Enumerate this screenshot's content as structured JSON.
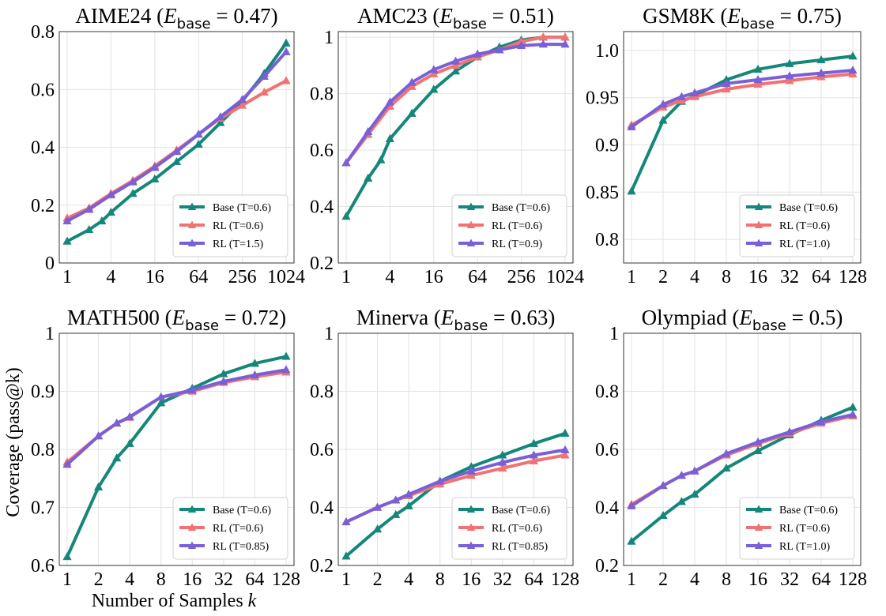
{
  "figure": {
    "ylabel": "Coverage (pass@k)",
    "xlabel_prefix": "Number of Samples ",
    "xlabel_var": "k",
    "colors": {
      "base": "#14877a",
      "rl1": "#f27272",
      "rl2": "#7b5fd6"
    }
  },
  "chart_data": [
    {
      "type": "line",
      "title_name": "AIME24",
      "title_value": "0.47",
      "xscale": "log2",
      "x_ticks": [
        1,
        4,
        16,
        64,
        256,
        1024
      ],
      "x_tick_labels": [
        "1",
        "4",
        "16",
        "64",
        "256",
        "1024"
      ],
      "ylim": [
        0,
        0.8
      ],
      "y_ticks": [
        0,
        0.2,
        0.4,
        0.6,
        0.8
      ],
      "y_tick_labels": [
        "0",
        "0.2",
        "0.4",
        "0.6",
        "0.8"
      ],
      "legend": "lower-right",
      "series": [
        {
          "name": "Base (T=0.6)",
          "color_key": "base",
          "points": [
            [
              1,
              0.075
            ],
            [
              2,
              0.115
            ],
            [
              3,
              0.145
            ],
            [
              4,
              0.175
            ],
            [
              8,
              0.24
            ],
            [
              16,
              0.29
            ],
            [
              32,
              0.35
            ],
            [
              64,
              0.41
            ],
            [
              128,
              0.485
            ],
            [
              256,
              0.56
            ],
            [
              512,
              0.655
            ],
            [
              1024,
              0.76
            ]
          ]
        },
        {
          "name": "RL (T=0.6)",
          "color_key": "rl1",
          "points": [
            [
              1,
              0.155
            ],
            [
              2,
              0.19
            ],
            [
              4,
              0.24
            ],
            [
              8,
              0.285
            ],
            [
              16,
              0.335
            ],
            [
              32,
              0.39
            ],
            [
              64,
              0.445
            ],
            [
              128,
              0.5
            ],
            [
              256,
              0.545
            ],
            [
              512,
              0.59
            ],
            [
              1024,
              0.63
            ]
          ]
        },
        {
          "name": "RL (T=1.5)",
          "color_key": "rl2",
          "points": [
            [
              1,
              0.145
            ],
            [
              2,
              0.185
            ],
            [
              4,
              0.235
            ],
            [
              8,
              0.28
            ],
            [
              16,
              0.33
            ],
            [
              32,
              0.385
            ],
            [
              64,
              0.445
            ],
            [
              128,
              0.505
            ],
            [
              256,
              0.565
            ],
            [
              512,
              0.645
            ],
            [
              1024,
              0.73
            ]
          ]
        }
      ]
    },
    {
      "type": "line",
      "title_name": "AMC23",
      "title_value": "0.51",
      "xscale": "log2",
      "x_ticks": [
        1,
        4,
        16,
        64,
        256,
        1024
      ],
      "x_tick_labels": [
        "1",
        "4",
        "16",
        "64",
        "256",
        "1024"
      ],
      "ylim": [
        0.2,
        1.02
      ],
      "y_ticks": [
        0.2,
        0.4,
        0.6,
        0.8,
        1.0
      ],
      "y_tick_labels": [
        "0.2",
        "0.4",
        "0.6",
        "0.8",
        "1"
      ],
      "legend": "lower-right",
      "series": [
        {
          "name": "Base (T=0.6)",
          "color_key": "base",
          "points": [
            [
              1,
              0.365
            ],
            [
              2,
              0.5
            ],
            [
              3,
              0.565
            ],
            [
              4,
              0.64
            ],
            [
              8,
              0.73
            ],
            [
              16,
              0.815
            ],
            [
              32,
              0.88
            ],
            [
              64,
              0.93
            ],
            [
              128,
              0.965
            ],
            [
              256,
              0.99
            ],
            [
              512,
              1.0
            ],
            [
              1024,
              1.0
            ]
          ]
        },
        {
          "name": "RL (T=0.6)",
          "color_key": "rl1",
          "points": [
            [
              1,
              0.555
            ],
            [
              2,
              0.655
            ],
            [
              4,
              0.755
            ],
            [
              8,
              0.825
            ],
            [
              16,
              0.87
            ],
            [
              32,
              0.9
            ],
            [
              64,
              0.93
            ],
            [
              128,
              0.955
            ],
            [
              256,
              0.985
            ],
            [
              512,
              1.0
            ],
            [
              1024,
              1.0
            ]
          ]
        },
        {
          "name": "RL (T=0.9)",
          "color_key": "rl2",
          "points": [
            [
              1,
              0.555
            ],
            [
              2,
              0.665
            ],
            [
              4,
              0.77
            ],
            [
              8,
              0.84
            ],
            [
              16,
              0.885
            ],
            [
              32,
              0.915
            ],
            [
              64,
              0.94
            ],
            [
              128,
              0.955
            ],
            [
              256,
              0.97
            ],
            [
              512,
              0.975
            ],
            [
              1024,
              0.975
            ]
          ]
        }
      ]
    },
    {
      "type": "line",
      "title_name": "GSM8K",
      "title_value": "0.75",
      "xscale": "log2",
      "x_ticks": [
        1,
        2,
        4,
        8,
        16,
        32,
        64,
        128
      ],
      "x_tick_labels": [
        "1",
        "2",
        "4",
        "8",
        "16",
        "32",
        "64",
        "128"
      ],
      "ylim": [
        0.775,
        1.02
      ],
      "y_ticks": [
        0.8,
        0.85,
        0.9,
        0.95,
        1.0
      ],
      "y_tick_labels": [
        "0.8",
        "0.85",
        "0.9",
        "0.95",
        "1.0"
      ],
      "legend": "lower-right",
      "series": [
        {
          "name": "Base (T=0.6)",
          "color_key": "base",
          "points": [
            [
              1,
              0.851
            ],
            [
              2,
              0.926
            ],
            [
              3,
              0.946
            ],
            [
              4,
              0.952
            ],
            [
              8,
              0.969
            ],
            [
              16,
              0.98
            ],
            [
              32,
              0.986
            ],
            [
              64,
              0.99
            ],
            [
              128,
              0.994
            ]
          ]
        },
        {
          "name": "RL (T=0.6)",
          "color_key": "rl1",
          "points": [
            [
              1,
              0.921
            ],
            [
              2,
              0.94
            ],
            [
              3,
              0.947
            ],
            [
              4,
              0.951
            ],
            [
              8,
              0.959
            ],
            [
              16,
              0.964
            ],
            [
              32,
              0.968
            ],
            [
              64,
              0.972
            ],
            [
              128,
              0.975
            ]
          ]
        },
        {
          "name": "RL (T=1.0)",
          "color_key": "rl2",
          "points": [
            [
              1,
              0.919
            ],
            [
              2,
              0.943
            ],
            [
              3,
              0.951
            ],
            [
              4,
              0.955
            ],
            [
              8,
              0.965
            ],
            [
              16,
              0.969
            ],
            [
              32,
              0.973
            ],
            [
              64,
              0.976
            ],
            [
              128,
              0.979
            ]
          ]
        }
      ]
    },
    {
      "type": "line",
      "title_name": "MATH500",
      "title_value": "0.72",
      "xscale": "log2",
      "x_ticks": [
        1,
        2,
        4,
        8,
        16,
        32,
        64,
        128
      ],
      "x_tick_labels": [
        "1",
        "2",
        "4",
        "8",
        "16",
        "32",
        "64",
        "128"
      ],
      "ylim": [
        0.6,
        1.0
      ],
      "y_ticks": [
        0.6,
        0.7,
        0.8,
        0.9,
        1.0
      ],
      "y_tick_labels": [
        "0.6",
        "0.7",
        "0.8",
        "0.9",
        "1"
      ],
      "legend": "lower-right",
      "series": [
        {
          "name": "Base (T=0.6)",
          "color_key": "base",
          "points": [
            [
              1,
              0.615
            ],
            [
              2,
              0.735
            ],
            [
              3,
              0.785
            ],
            [
              4,
              0.81
            ],
            [
              8,
              0.88
            ],
            [
              16,
              0.905
            ],
            [
              32,
              0.93
            ],
            [
              64,
              0.948
            ],
            [
              128,
              0.96
            ]
          ]
        },
        {
          "name": "RL (T=0.6)",
          "color_key": "rl1",
          "points": [
            [
              1,
              0.778
            ],
            [
              2,
              0.823
            ],
            [
              3,
              0.845
            ],
            [
              4,
              0.855
            ],
            [
              8,
              0.89
            ],
            [
              16,
              0.9
            ],
            [
              32,
              0.915
            ],
            [
              64,
              0.925
            ],
            [
              128,
              0.933
            ]
          ]
        },
        {
          "name": "RL (T=0.85)",
          "color_key": "rl2",
          "points": [
            [
              1,
              0.774
            ],
            [
              2,
              0.823
            ],
            [
              3,
              0.845
            ],
            [
              4,
              0.856
            ],
            [
              8,
              0.89
            ],
            [
              16,
              0.902
            ],
            [
              32,
              0.917
            ],
            [
              64,
              0.928
            ],
            [
              128,
              0.937
            ]
          ]
        }
      ]
    },
    {
      "type": "line",
      "title_name": "Minerva",
      "title_value": "0.63",
      "xscale": "log2",
      "x_ticks": [
        1,
        2,
        4,
        8,
        16,
        32,
        64,
        128
      ],
      "x_tick_labels": [
        "1",
        "2",
        "4",
        "8",
        "16",
        "32",
        "64",
        "128"
      ],
      "ylim": [
        0.2,
        1.0
      ],
      "y_ticks": [
        0.2,
        0.4,
        0.6,
        0.8,
        1.0
      ],
      "y_tick_labels": [
        "0.2",
        "0.4",
        "0.6",
        "0.8",
        "1"
      ],
      "legend": "lower-right",
      "series": [
        {
          "name": "Base (T=0.6)",
          "color_key": "base",
          "points": [
            [
              1,
              0.232
            ],
            [
              2,
              0.325
            ],
            [
              3,
              0.375
            ],
            [
              4,
              0.405
            ],
            [
              8,
              0.49
            ],
            [
              16,
              0.54
            ],
            [
              32,
              0.58
            ],
            [
              64,
              0.62
            ],
            [
              128,
              0.655
            ]
          ]
        },
        {
          "name": "RL (T=0.6)",
          "color_key": "rl1",
          "points": [
            [
              1,
              0.35
            ],
            [
              2,
              0.4
            ],
            [
              3,
              0.425
            ],
            [
              4,
              0.44
            ],
            [
              8,
              0.48
            ],
            [
              16,
              0.51
            ],
            [
              32,
              0.535
            ],
            [
              64,
              0.56
            ],
            [
              128,
              0.58
            ]
          ]
        },
        {
          "name": "RL (T=0.85)",
          "color_key": "rl2",
          "points": [
            [
              1,
              0.35
            ],
            [
              2,
              0.4
            ],
            [
              3,
              0.425
            ],
            [
              4,
              0.445
            ],
            [
              8,
              0.49
            ],
            [
              16,
              0.525
            ],
            [
              32,
              0.555
            ],
            [
              64,
              0.58
            ],
            [
              128,
              0.598
            ]
          ]
        }
      ]
    },
    {
      "type": "line",
      "title_name": "Olympiad",
      "title_value": "0.5",
      "xscale": "log2",
      "x_ticks": [
        1,
        2,
        4,
        8,
        16,
        32,
        64,
        128
      ],
      "x_tick_labels": [
        "1",
        "2",
        "4",
        "8",
        "16",
        "32",
        "64",
        "128"
      ],
      "ylim": [
        0.2,
        1.0
      ],
      "y_ticks": [
        0.2,
        0.4,
        0.6,
        0.8,
        1.0
      ],
      "y_tick_labels": [
        "0.2",
        "0.4",
        "0.6",
        "0.8",
        "1"
      ],
      "legend": "lower-right",
      "series": [
        {
          "name": "Base (T=0.6)",
          "color_key": "base",
          "points": [
            [
              1,
              0.283
            ],
            [
              2,
              0.372
            ],
            [
              3,
              0.42
            ],
            [
              4,
              0.445
            ],
            [
              8,
              0.535
            ],
            [
              16,
              0.595
            ],
            [
              32,
              0.65
            ],
            [
              64,
              0.7
            ],
            [
              128,
              0.745
            ]
          ]
        },
        {
          "name": "RL (T=0.6)",
          "color_key": "rl1",
          "points": [
            [
              1,
              0.41
            ],
            [
              2,
              0.475
            ],
            [
              3,
              0.51
            ],
            [
              4,
              0.525
            ],
            [
              8,
              0.58
            ],
            [
              16,
              0.62
            ],
            [
              32,
              0.655
            ],
            [
              64,
              0.69
            ],
            [
              128,
              0.715
            ]
          ]
        },
        {
          "name": "RL (T=1.0)",
          "color_key": "rl2",
          "points": [
            [
              1,
              0.405
            ],
            [
              2,
              0.475
            ],
            [
              3,
              0.51
            ],
            [
              4,
              0.525
            ],
            [
              8,
              0.585
            ],
            [
              16,
              0.625
            ],
            [
              32,
              0.66
            ],
            [
              64,
              0.695
            ],
            [
              128,
              0.72
            ]
          ]
        }
      ]
    }
  ]
}
